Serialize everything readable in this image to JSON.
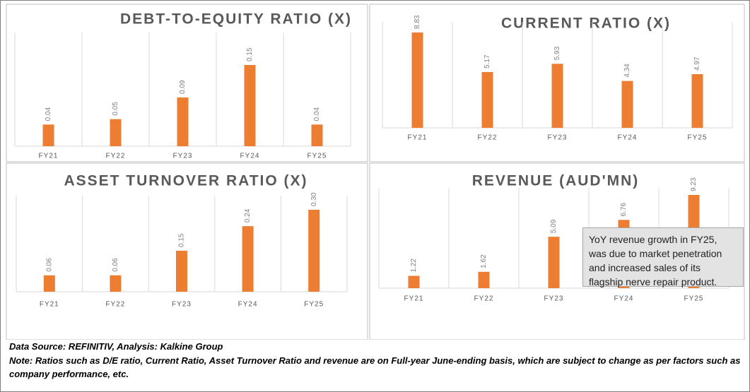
{
  "chart_data": [
    {
      "type": "bar",
      "title": "DEBT-TO-EQUITY RATIO (X)",
      "categories": [
        "FY21",
        "FY22",
        "FY23",
        "FY24",
        "FY25"
      ],
      "values": [
        0.04,
        0.05,
        0.09,
        0.15,
        0.04
      ],
      "color": "#ed7d31"
    },
    {
      "type": "bar",
      "title": "CURRENT RATIO (X)",
      "categories": [
        "FY21",
        "FY22",
        "FY23",
        "FY24",
        "FY25"
      ],
      "values": [
        8.83,
        5.17,
        5.93,
        4.34,
        4.97
      ],
      "color": "#ed7d31"
    },
    {
      "type": "bar",
      "title": "ASSET TURNOVER RATIO (X)",
      "categories": [
        "FY21",
        "FY22",
        "FY23",
        "FY24",
        "FY25"
      ],
      "values": [
        0.06,
        0.06,
        0.15,
        0.24,
        0.3
      ],
      "value_labels": [
        "0.06",
        "0.06",
        "0.15",
        "0.24",
        "0.30"
      ],
      "color": "#ed7d31"
    },
    {
      "type": "bar",
      "title": "REVENUE (AUD'MN)",
      "categories": [
        "FY21",
        "FY22",
        "FY23",
        "FY24",
        "FY25"
      ],
      "values": [
        1.22,
        1.62,
        5.09,
        6.76,
        9.23
      ],
      "color": "#ed7d31",
      "annotation": "YoY revenue growth in FY25, was due to market penetration and increased sales of its flagship nerve repair product."
    }
  ],
  "source": "Data Source: REFINITIV, Analysis: Kalkine Group",
  "note": "Note: Ratios such as D/E ratio, Current Ratio, Asset Turnover Ratio and revenue are on Full-year June-ending basis, which are subject to change as per factors such as company performance, etc."
}
